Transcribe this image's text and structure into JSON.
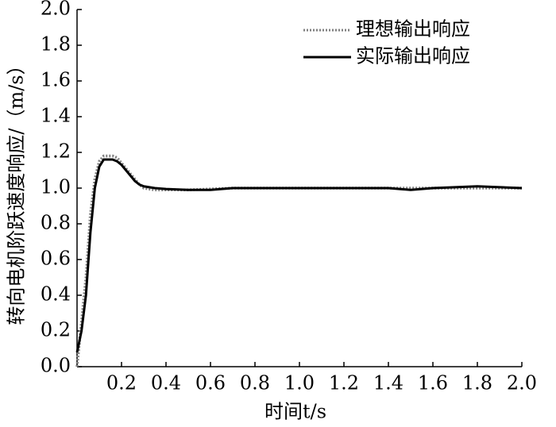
{
  "chart_data": {
    "type": "line",
    "xlabel": "时间t/s",
    "ylabel": "转向电机阶跃速度响应/（m/s）",
    "x": [
      0,
      0.02,
      0.04,
      0.06,
      0.08,
      0.1,
      0.12,
      0.14,
      0.16,
      0.18,
      0.2,
      0.22,
      0.24,
      0.26,
      0.28,
      0.3,
      0.35,
      0.4,
      0.5,
      0.6,
      0.7,
      0.8,
      1.0,
      1.2,
      1.4,
      1.5,
      1.6,
      1.8,
      2.0
    ],
    "series": [
      {
        "name": "理想输出响应",
        "color": "#808080",
        "style": "dotted",
        "values": [
          0.0,
          0.25,
          0.5,
          0.85,
          1.05,
          1.15,
          1.18,
          1.18,
          1.18,
          1.17,
          1.14,
          1.11,
          1.08,
          1.05,
          1.02,
          1.0,
          0.99,
          0.99,
          0.99,
          0.995,
          1.0,
          1.0,
          1.0,
          1.0,
          1.0,
          1.0,
          1.0,
          1.0,
          1.0
        ]
      },
      {
        "name": "实际输出响应",
        "color": "#000000",
        "style": "solid",
        "values": [
          0.08,
          0.2,
          0.4,
          0.75,
          1.0,
          1.12,
          1.16,
          1.16,
          1.16,
          1.15,
          1.13,
          1.1,
          1.07,
          1.04,
          1.02,
          1.01,
          1.0,
          0.995,
          0.99,
          0.99,
          1.0,
          1.0,
          1.0,
          1.0,
          1.0,
          0.99,
          1.0,
          1.01,
          1.0
        ]
      }
    ],
    "xlim": [
      0,
      2.0
    ],
    "ylim": [
      0,
      2.0
    ],
    "xticks": [
      {
        "value": 0.2,
        "label": "0.2"
      },
      {
        "value": 0.4,
        "label": "0.4"
      },
      {
        "value": 0.6,
        "label": "0.6"
      },
      {
        "value": 0.8,
        "label": "0.8"
      },
      {
        "value": 1.0,
        "label": "1.0"
      },
      {
        "value": 1.2,
        "label": "1.2"
      },
      {
        "value": 1.4,
        "label": "1.4"
      },
      {
        "value": 1.6,
        "label": "1.6"
      },
      {
        "value": 1.8,
        "label": "1.8"
      },
      {
        "value": 2.0,
        "label": "2.0"
      }
    ],
    "yticks": [
      {
        "value": 0,
        "label": "0.0"
      },
      {
        "value": 0.2,
        "label": "0.2"
      },
      {
        "value": 0.4,
        "label": "0.4"
      },
      {
        "value": 0.6,
        "label": "0.6"
      },
      {
        "value": 0.8,
        "label": "0.8"
      },
      {
        "value": 1.0,
        "label": "1.0"
      },
      {
        "value": 1.2,
        "label": "1.2"
      },
      {
        "value": 1.4,
        "label": "1.4"
      },
      {
        "value": 1.6,
        "label": "1.6"
      },
      {
        "value": 1.8,
        "label": "1.8"
      },
      {
        "value": 2.0,
        "label": "2.0"
      }
    ],
    "legend": "upper right"
  }
}
